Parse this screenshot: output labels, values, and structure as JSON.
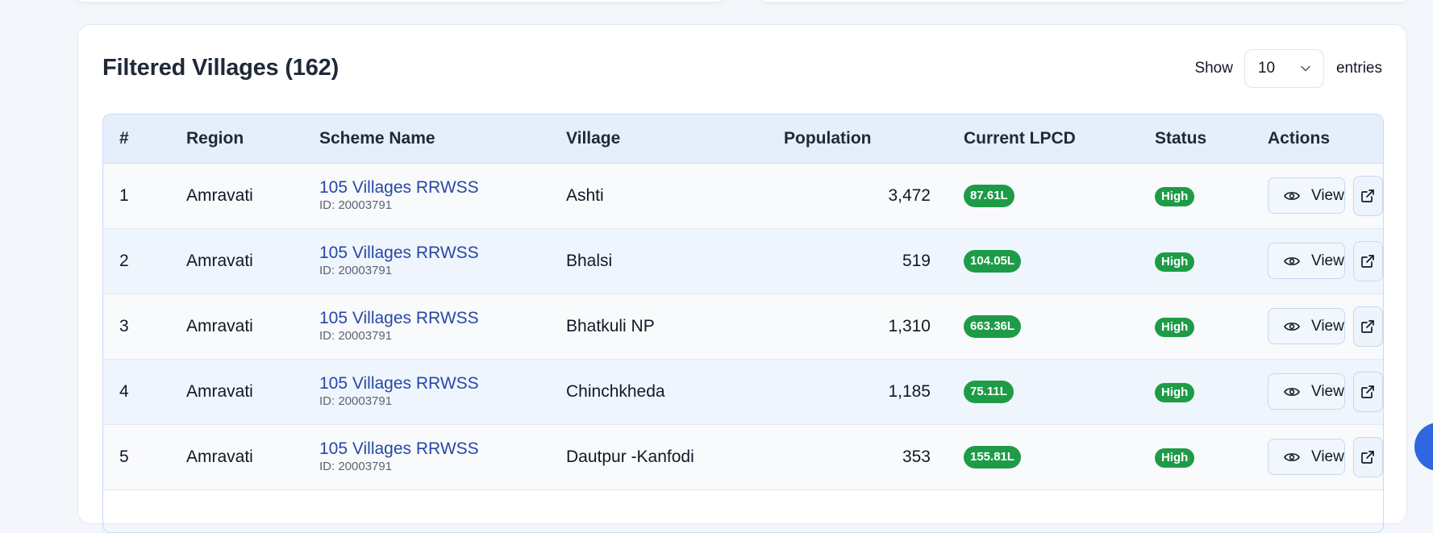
{
  "card": {
    "title": "Filtered Villages (162)",
    "show_label": "Show",
    "page_size": "10",
    "entries_label": "entries"
  },
  "table": {
    "headers": {
      "num": "#",
      "region": "Region",
      "scheme": "Scheme Name",
      "village": "Village",
      "population": "Population",
      "lpcd": "Current LPCD",
      "status": "Status",
      "actions": "Actions"
    },
    "view_label": "View",
    "rows": [
      {
        "num": "1",
        "region": "Amravati",
        "scheme": "105 Villages RRWSS",
        "scheme_id": "ID: 20003791",
        "village": "Ashti",
        "population": "3,472",
        "lpcd": "87.61L",
        "status": "High"
      },
      {
        "num": "2",
        "region": "Amravati",
        "scheme": "105 Villages RRWSS",
        "scheme_id": "ID: 20003791",
        "village": "Bhalsi",
        "population": "519",
        "lpcd": "104.05L",
        "status": "High"
      },
      {
        "num": "3",
        "region": "Amravati",
        "scheme": "105 Villages RRWSS",
        "scheme_id": "ID: 20003791",
        "village": "Bhatkuli NP",
        "population": "1,310",
        "lpcd": "663.36L",
        "status": "High"
      },
      {
        "num": "4",
        "region": "Amravati",
        "scheme": "105 Villages RRWSS",
        "scheme_id": "ID: 20003791",
        "village": "Chinchkheda",
        "population": "1,185",
        "lpcd": "75.11L",
        "status": "High"
      },
      {
        "num": "5",
        "region": "Amravati",
        "scheme": "105 Villages RRWSS",
        "scheme_id": "ID: 20003791",
        "village": "Dautpur -Kanfodi",
        "population": "353",
        "lpcd": "155.81L",
        "status": "High"
      }
    ]
  },
  "colors": {
    "accent": "#2747a6",
    "status_high": "#1e9b47",
    "header_bg": "#e5eefb",
    "fab": "#2e67e0"
  }
}
